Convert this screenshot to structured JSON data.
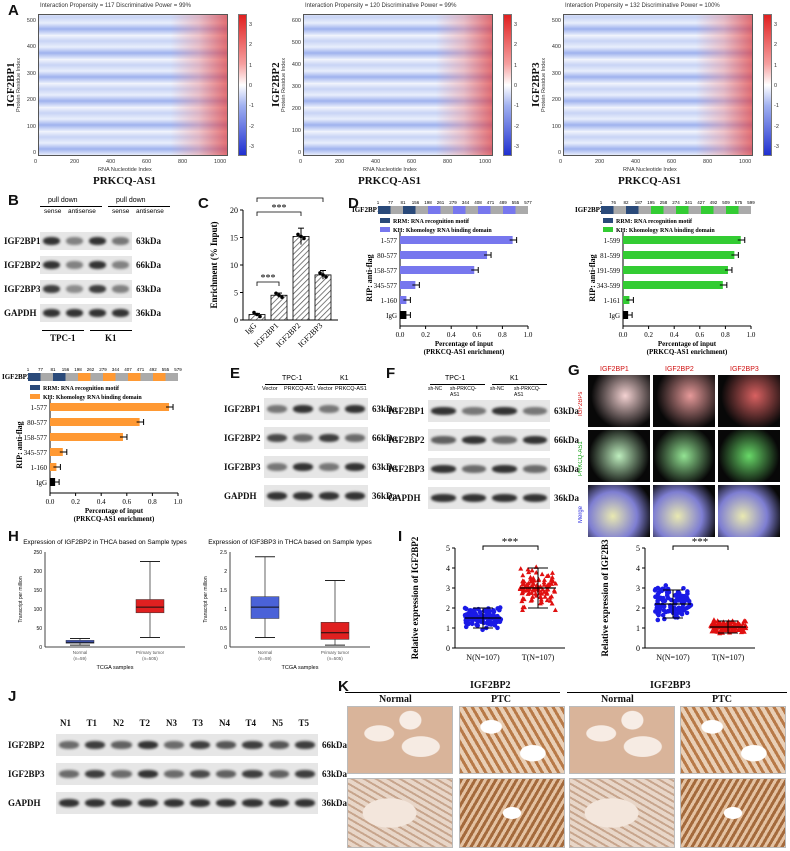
{
  "panels": {
    "A": "A",
    "B": "B",
    "C": "C",
    "D": "D",
    "E": "E",
    "F": "F",
    "G": "G",
    "H": "H",
    "I": "I",
    "J": "J",
    "K": "K"
  },
  "heatmaps": [
    {
      "row_label": "IGF2BP1",
      "header": "Interaction Propensity = 117   Discriminative Power = 99%",
      "y_ticks": [
        "500",
        "400",
        "300",
        "200",
        "100",
        "0"
      ],
      "x_ticks": [
        "0",
        "200",
        "400",
        "600",
        "800",
        "1000"
      ]
    },
    {
      "row_label": "IGF2BP2",
      "header": "Interaction Propensity = 120   Discriminative Power = 99%",
      "y_ticks": [
        "600",
        "500",
        "400",
        "300",
        "200",
        "100",
        "0"
      ],
      "x_ticks": [
        "0",
        "200",
        "400",
        "600",
        "800",
        "1000"
      ]
    },
    {
      "row_label": "IGF2BP3",
      "header": "Interaction Propensity = 132   Discriminative Power = 100%",
      "y_ticks": [
        "500",
        "400",
        "300",
        "200",
        "100",
        "0"
      ],
      "x_ticks": [
        "0",
        "200",
        "400",
        "600",
        "800",
        "1000"
      ]
    }
  ],
  "heatmap_common": {
    "ylabel": "Protein Residue Index",
    "xlabel": "RNA Nucleotide Index",
    "xtitle": "PRKCQ-AS1",
    "cbar_ticks": [
      "3",
      "2",
      "1",
      "0",
      "-1",
      "-2",
      "-3"
    ]
  },
  "panel_b": {
    "groups": [
      "pull down",
      "pull down"
    ],
    "lanes": [
      "sense",
      "antisense",
      "sense",
      "antisense"
    ],
    "rows": [
      "IGF2BP1",
      "IGF2BP2",
      "IGF2BP3",
      "GAPDH"
    ],
    "kda": [
      "63kDa",
      "66kDa",
      "63kDa",
      "36kDa"
    ],
    "cells": [
      "TPC-1",
      "K1"
    ]
  },
  "chart_data": [
    {
      "type": "bar",
      "title": "",
      "ylabel": "Enrichment (% Input)",
      "categories": [
        "IgG",
        "IGF2BP1",
        "IGF2BP2",
        "IGF2BP3"
      ],
      "values": [
        1,
        4.5,
        15.2,
        8.2
      ],
      "errors": [
        0.2,
        0.4,
        1.5,
        0.8
      ],
      "ylim": [
        0,
        20
      ],
      "yticks": [
        "0",
        "5",
        "10",
        "15",
        "20"
      ],
      "sig": [
        "***",
        "***",
        "***"
      ]
    },
    {
      "type": "bar",
      "orientation": "horizontal",
      "protein": "IGF2BP1",
      "domain_numbers": [
        "1",
        "77",
        "81",
        "156",
        "198",
        "261",
        "279",
        "344",
        "408",
        "471",
        "489",
        "555",
        "577"
      ],
      "legend": [
        "RRM: RNA recognition motif",
        "KH: Khomology RNA binding domain"
      ],
      "ylabel": "RIP: anti-flag",
      "xlabel": "Percentage of input",
      "xlabel2": "(PRKCQ-AS1 enrichment)",
      "categories": [
        "1-577",
        "80-577",
        "158-577",
        "345-577",
        "1-160",
        "IgG"
      ],
      "values": [
        0.88,
        0.68,
        0.58,
        0.12,
        0.05,
        0.05
      ],
      "xticks": [
        "0.0",
        "0.2",
        "0.4",
        "0.6",
        "0.8",
        "1.0"
      ],
      "xlim": [
        0,
        1
      ]
    },
    {
      "type": "bar",
      "orientation": "horizontal",
      "protein": "IGF2BP2",
      "domain_numbers": [
        "1",
        "76",
        "82",
        "187",
        "195",
        "258",
        "274",
        "341",
        "427",
        "492",
        "509",
        "575",
        "599"
      ],
      "legend": [
        "RRM: RNA recognition motif",
        "KH: Khomology RNA binding domain"
      ],
      "ylabel": "RIP: anti-flag",
      "xlabel": "Percentage of input",
      "xlabel2": "(PRKCQ-AS1 enrichment)",
      "categories": [
        "1-599",
        "81-599",
        "191-599",
        "343-599",
        "1-161",
        "IgG"
      ],
      "values": [
        0.92,
        0.87,
        0.82,
        0.78,
        0.05,
        0.04
      ],
      "xticks": [
        "0.0",
        "0.2",
        "0.4",
        "0.6",
        "0.8",
        "1.0"
      ],
      "xlim": [
        0,
        1
      ]
    },
    {
      "type": "bar",
      "orientation": "horizontal",
      "protein": "IGF2BP3",
      "domain_numbers": [
        "1",
        "77",
        "81",
        "156",
        "198",
        "262",
        "279",
        "344",
        "407",
        "471",
        "492",
        "555",
        "579"
      ],
      "legend": [
        "RRM: RNA recognition motif",
        "KH: Khomology RNA binding domain"
      ],
      "ylabel": "RIP: anti-flag",
      "xlabel": "Percentage of input",
      "xlabel2": "(PRKCQ-AS1 enrichment)",
      "categories": [
        "1-577",
        "80-577",
        "158-577",
        "345-577",
        "1-160",
        "IgG"
      ],
      "values": [
        0.93,
        0.7,
        0.57,
        0.1,
        0.05,
        0.04
      ],
      "xticks": [
        "0.0",
        "0.2",
        "0.4",
        "0.6",
        "0.8",
        "1.0"
      ],
      "xlim": [
        0,
        1
      ]
    },
    {
      "type": "box",
      "title": "Expression of IGF2BP2 in THCA based on Sample types",
      "ylabel": "Transcript per million",
      "xlabel": "TCGA samples",
      "categories": [
        "Normal\n(n=59)",
        "Primary tumor\n(n=505)"
      ],
      "yticks": [
        "0",
        "50",
        "100",
        "150",
        "200",
        "250"
      ]
    },
    {
      "type": "box",
      "title": "Expression of IGF3BP3 in THCA based on Sample types",
      "ylabel": "Transcript per million",
      "xlabel": "TCGA samples",
      "categories": [
        "Normal\n(n=59)",
        "Primary tumor\n(n=505)"
      ],
      "yticks": [
        "0",
        "0.5",
        "1",
        "1.5",
        "2",
        "2.5"
      ]
    },
    {
      "type": "scatter",
      "ylabel": "Relative expression of IGF2BP2",
      "categories": [
        "N(N=107)",
        "T(N=107)"
      ],
      "yticks": [
        "0",
        "1",
        "2",
        "3",
        "4",
        "5"
      ],
      "means": [
        1.5,
        3.0
      ],
      "sig": "***"
    },
    {
      "type": "scatter",
      "ylabel": "Relative expression of IGF2B3",
      "categories": [
        "N(N=107)",
        "T(N=107)"
      ],
      "yticks": [
        "0",
        "1",
        "2",
        "3",
        "4",
        "5"
      ],
      "means": [
        2.2,
        1.05
      ],
      "sig": "***"
    }
  ],
  "panel_e": {
    "cells": [
      "TPC-1",
      "K1"
    ],
    "lanes": [
      "Vector",
      "PRKCQ-AS1",
      "Vector",
      "PRKCQ-AS1"
    ],
    "rows": [
      "IGF2BP1",
      "IGF2BP2",
      "IGF2BP3",
      "GAPDH"
    ],
    "kda": [
      "63kDa",
      "66kDa",
      "63kDa",
      "36kDa"
    ]
  },
  "panel_f": {
    "cells": [
      "TPC-1",
      "K1"
    ],
    "lanes": [
      "sh-NC",
      "sh-PRKCQ-AS1",
      "sh-NC",
      "sh-PRKCQ-AS1"
    ],
    "rows": [
      "IGF2BP1",
      "IGF2BP2",
      "IGF2BP3",
      "GAPDH"
    ],
    "kda": [
      "63kDa",
      "66kDa",
      "63kDa",
      "36kDa"
    ]
  },
  "panel_g": {
    "cols": [
      "IGF2BP1",
      "IGF2BP2",
      "IGF2BP3"
    ],
    "rows": [
      "IGF2BPs",
      "PRKCQ-AS1",
      "Merge"
    ]
  },
  "panel_j": {
    "lanes": [
      "N1",
      "T1",
      "N2",
      "T2",
      "N3",
      "T3",
      "N4",
      "T4",
      "N5",
      "T5"
    ],
    "rows": [
      "IGF2BP2",
      "IGF2BP3",
      "GAPDH"
    ],
    "kda": [
      "66kDa",
      "63kDa",
      "36kDa"
    ]
  },
  "panel_k": {
    "groups": [
      "IGF2BP2",
      "IGF2BP3"
    ],
    "subs": [
      "Normal",
      "PTC",
      "Normal",
      "PTC"
    ]
  },
  "colors": {
    "rrm": "#2a4a7a",
    "kh_blue": "#7777ee",
    "kh_green": "#33cc33",
    "kh_orange": "#ff9933",
    "box_blue": "#4a62d8",
    "box_red": "#e02020",
    "scatter_blue": "#1a1ae6",
    "scatter_red": "#e01010"
  }
}
